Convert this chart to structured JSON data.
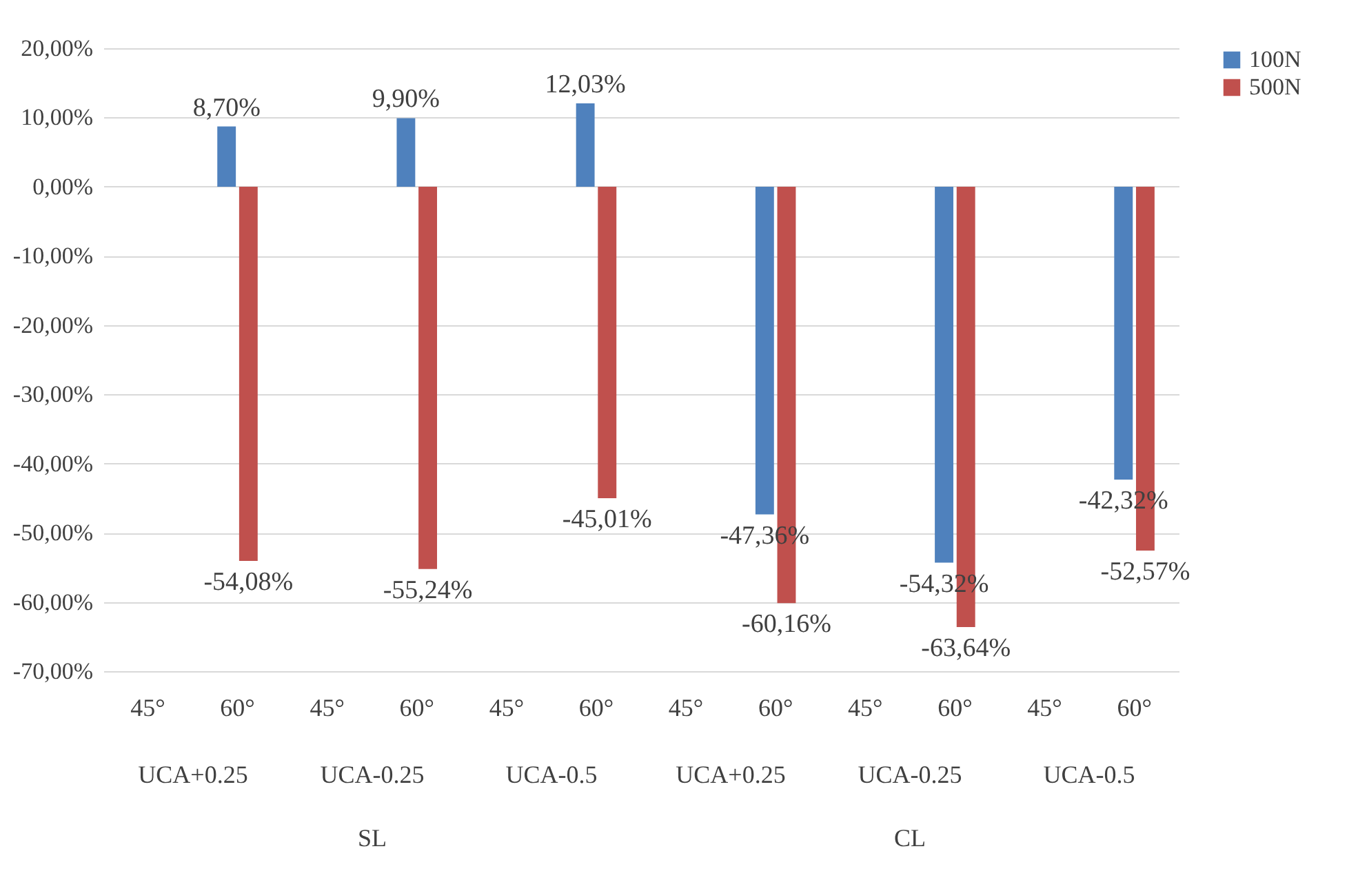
{
  "chart_data": {
    "type": "bar",
    "categories": [
      "45°",
      "60°",
      "45°",
      "60°",
      "45°",
      "60°",
      "45°",
      "60°",
      "45°",
      "60°",
      "45°",
      "60°"
    ],
    "series": [
      {
        "name": "100N",
        "color": "#4f81bd",
        "values": [
          null,
          8.7,
          null,
          9.9,
          null,
          12.03,
          null,
          -47.36,
          null,
          -54.32,
          null,
          -42.32
        ],
        "value_labels": [
          null,
          "8,70%",
          null,
          "9,90%",
          null,
          "12,03%",
          null,
          "-47,36%",
          null,
          "-54,32%",
          null,
          "-42,32%"
        ]
      },
      {
        "name": "500N",
        "color": "#c0504d",
        "values": [
          null,
          -54.08,
          null,
          -55.24,
          null,
          -45.01,
          null,
          -60.16,
          null,
          -63.64,
          null,
          -52.57
        ],
        "value_labels": [
          null,
          "-54,08%",
          null,
          "-55,24%",
          null,
          "-45,01%",
          null,
          "-60,16%",
          null,
          "-63,64%",
          null,
          "-52,57%"
        ]
      }
    ],
    "ylim": [
      -70,
      20
    ],
    "yticks": [
      {
        "value": -70,
        "label": "-70,00%"
      },
      {
        "value": -60,
        "label": "-60,00%"
      },
      {
        "value": -50,
        "label": "-50,00%"
      },
      {
        "value": -40,
        "label": "-40,00%"
      },
      {
        "value": -30,
        "label": "-30,00%"
      },
      {
        "value": -20,
        "label": "-20,00%"
      },
      {
        "value": -10,
        "label": "-10,00%"
      },
      {
        "value": 0,
        "label": "0,00%"
      },
      {
        "value": 10,
        "label": "10,00%"
      },
      {
        "value": 20,
        "label": "20,00%"
      }
    ],
    "annotations": [
      "UCA+0.25",
      "UCA-0.25",
      "UCA-0.5",
      "UCA+0.25",
      "UCA-0.25",
      "UCA-0.5",
      "SL",
      "CL"
    ],
    "grid": "y",
    "legend": "right"
  }
}
